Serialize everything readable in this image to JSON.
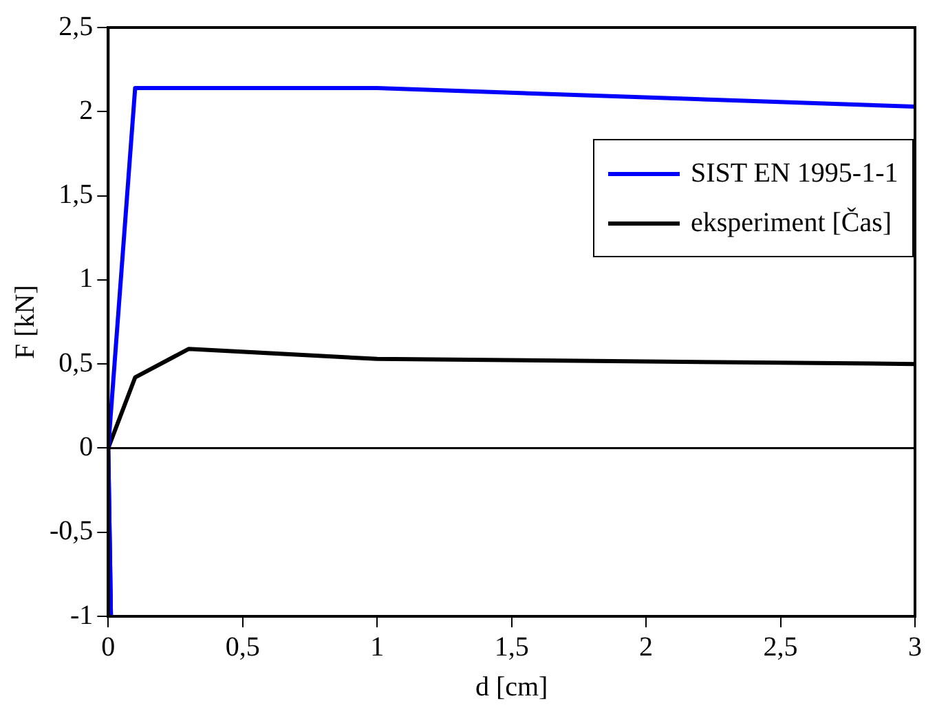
{
  "chart_data": {
    "type": "line",
    "xlabel": "d [cm]",
    "ylabel": "F [kN]",
    "xlim": [
      0,
      3
    ],
    "xticks": [
      0,
      {
        "value": 0.5,
        "label": "0,5"
      },
      1,
      {
        "value": 1.5,
        "label": "1,5"
      },
      2,
      {
        "value": 2.5,
        "label": "2,5"
      },
      3
    ],
    "ylim": [
      -1,
      2.5
    ],
    "yticks": [
      -1,
      {
        "value": -0.5,
        "label": "-0,5"
      },
      0,
      {
        "value": 0.5,
        "label": "0,5"
      },
      1,
      {
        "value": 1.5,
        "label": "1,5"
      },
      2,
      {
        "value": 2.5,
        "label": "2,5"
      }
    ],
    "grid": false,
    "legend": "right",
    "marker": "none",
    "ref_lines": [
      {
        "axis": "y",
        "value": 0,
        "color": "#000000"
      }
    ],
    "series": [
      {
        "name": "SIST EN 1995-1-1",
        "color": "#0000ff",
        "x": [
          0.01,
          0,
          0.1,
          1,
          3
        ],
        "values": [
          -1,
          0,
          2.14,
          2.14,
          2.03
        ]
      },
      {
        "name": "eksperiment [Čas]",
        "color": "#000000",
        "x": [
          0.01,
          0,
          0.1,
          0.3,
          1,
          3
        ],
        "values": [
          -1,
          0,
          0.42,
          0.59,
          0.53,
          0.5
        ]
      }
    ]
  }
}
